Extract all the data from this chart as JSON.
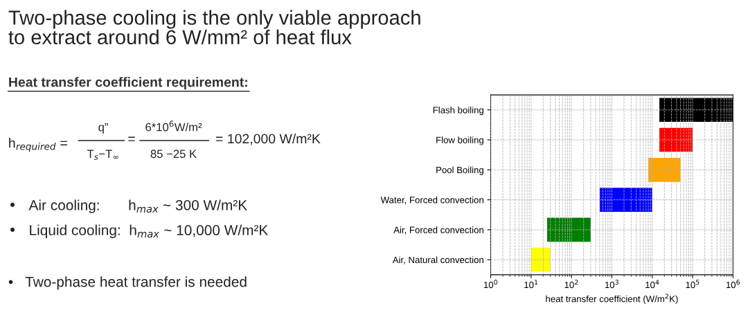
{
  "chart_data": {
    "type": "bar",
    "orientation": "horizontal",
    "title": "Two-phase cooling is the only viable approach\nto extract around 6 W/mm² of heat flux",
    "subtitle": "Heat transfer coefficient requirement:",
    "annotations": [
      "h$_{required}$ =",
      "q”",
      "T$_{s}$−T$_{∞}$",
      "=",
      "6*10$^{6}$W/m²",
      "85 −25 K",
      "= 102,000 W/m²K",
      "•   Air cooling:       h$_{max}$ ~ 300 W/m²K",
      "•   Liquid cooling:  h$_{max}$ ~ 10,000 W/m²K",
      "•   Two-phase heat transfer is needed"
    ],
    "categories": [
      "Flash boiling",
      "Flow boiling",
      "Pool Boiling",
      "Water, Forced convection",
      "Air, Forced convection",
      "Air, Natural convection"
    ],
    "base": [
      15000,
      15000,
      8000,
      500,
      25,
      10
    ],
    "values": [
      985000,
      85000,
      42000,
      9500,
      275,
      20
    ],
    "colors": [
      "#000000",
      "#ff0000",
      "#ffa500",
      "#0000ff",
      "#008000",
      "#ffff00"
    ],
    "xlabel": "heat transfer coefficient (W/m$^{2}$K)",
    "log": "x",
    "xlim": [
      1,
      1000000
    ],
    "xticks": [
      {
        "value": 1,
        "label": "10$^{0}$"
      },
      {
        "value": 10,
        "label": "10$^{1}$"
      },
      {
        "value": 100,
        "label": "10$^{2}$"
      },
      {
        "value": 1000,
        "label": "10$^{3}$"
      },
      {
        "value": 10000,
        "label": "10$^{4}$"
      },
      {
        "value": 100000,
        "label": "10$^{5}$"
      },
      {
        "value": 1000000,
        "label": "10$^{6}$"
      }
    ],
    "grid": true
  }
}
